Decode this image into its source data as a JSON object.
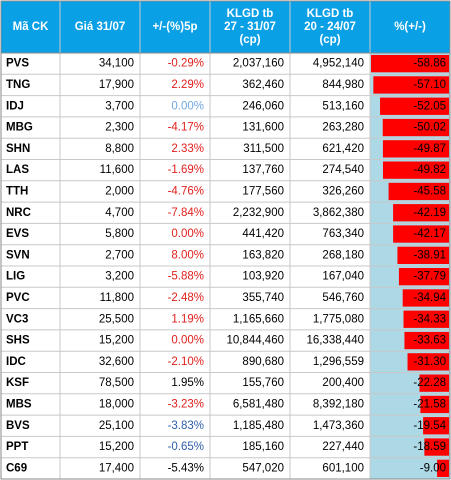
{
  "table": {
    "header": [
      [
        "Mã CK"
      ],
      [
        "Giá 31/07"
      ],
      [
        "+/-(%)5p"
      ],
      [
        "KLGD tb",
        "27 - 31/07",
        "(cp)"
      ],
      [
        "KLGD tb",
        "20 - 24/07",
        "(cp)"
      ],
      [
        "%(+/-)"
      ]
    ],
    "header_color": "#0aa0e6",
    "rows": [
      [
        "PVS",
        "34,100",
        "-0.29%",
        "2,037,160",
        "4,952,140"
      ],
      [
        "TNG",
        "17,900",
        "2.29%",
        "362,460",
        "844,980"
      ],
      [
        "IDJ",
        "3,700",
        "0.00%",
        "246,060",
        "513,160"
      ],
      [
        "MBG",
        "2,300",
        "-4.17%",
        "131,600",
        "263,280"
      ],
      [
        "SHN",
        "8,800",
        "2.33%",
        "311,500",
        "621,420"
      ],
      [
        "LAS",
        "11,600",
        "-1.69%",
        "137,760",
        "274,540"
      ],
      [
        "TTH",
        "2,000",
        "-4.76%",
        "177,560",
        "326,260"
      ],
      [
        "NRC",
        "4,700",
        "-7.84%",
        "2,232,900",
        "3,862,380"
      ],
      [
        "EVS",
        "5,800",
        "0.00%",
        "441,420",
        "763,340"
      ],
      [
        "SVN",
        "2,700",
        "8.00%",
        "163,820",
        "268,180"
      ],
      [
        "LIG",
        "3,200",
        "-5.88%",
        "103,920",
        "167,040"
      ],
      [
        "PVC",
        "11,800",
        "-2.48%",
        "355,740",
        "546,760"
      ],
      [
        "VC3",
        "25,500",
        "1.19%",
        "1,165,660",
        "1,775,080"
      ],
      [
        "SHS",
        "15,200",
        "0.00%",
        "10,844,460",
        "16,338,440"
      ],
      [
        "IDC",
        "32,600",
        "-2.10%",
        "890,680",
        "1,296,559"
      ],
      [
        "KSF",
        "78,500",
        "1.95%",
        "155,760",
        "200,400"
      ],
      [
        "MBS",
        "18,000",
        "-3.23%",
        "6,581,480",
        "8,392,180"
      ],
      [
        "BVS",
        "25,100",
        "-3.83%",
        "1,185,480",
        "1,473,360"
      ],
      [
        "PPT",
        "15,200",
        "-0.65%",
        "185,160",
        "227,440"
      ],
      [
        "C69",
        "17,400",
        "-5.43%",
        "547,020",
        "601,100"
      ]
    ],
    "change_colors": [
      "#e0211d",
      "#e0211d",
      "#6fa8dc",
      "#e0211d",
      "#e0211d",
      "#e0211d",
      "#e0211d",
      "#e0211d",
      "#e0211d",
      "#e0211d",
      "#e0211d",
      "#e0211d",
      "#e0211d",
      "#e0211d",
      "#e0211d",
      "#000000",
      "#e0211d",
      "#2f5ea8",
      "#2f5ea8",
      "#000000"
    ],
    "bars": {
      "values": [
        -58.86,
        -57.1,
        -52.05,
        -50.02,
        -49.87,
        -49.82,
        -45.58,
        -42.19,
        -42.17,
        -38.91,
        -37.79,
        -34.94,
        -34.33,
        -33.63,
        -31.3,
        -22.28,
        -21.58,
        -19.54,
        -18.59,
        -9.0
      ],
      "value_labels": [
        "-58.86",
        "-57.10",
        "-52.05",
        "-50.02",
        "-49.87",
        "-49.82",
        "-45.58",
        "-42.19",
        "-42.17",
        "-38.91",
        "-37.79",
        "-34.94",
        "-34.33",
        "-33.63",
        "-31.30",
        "-22.28",
        "-21.58",
        "-19.54",
        "-18.59",
        "-9.00"
      ],
      "color": "#ff0000",
      "background": "#add8e6"
    }
  }
}
